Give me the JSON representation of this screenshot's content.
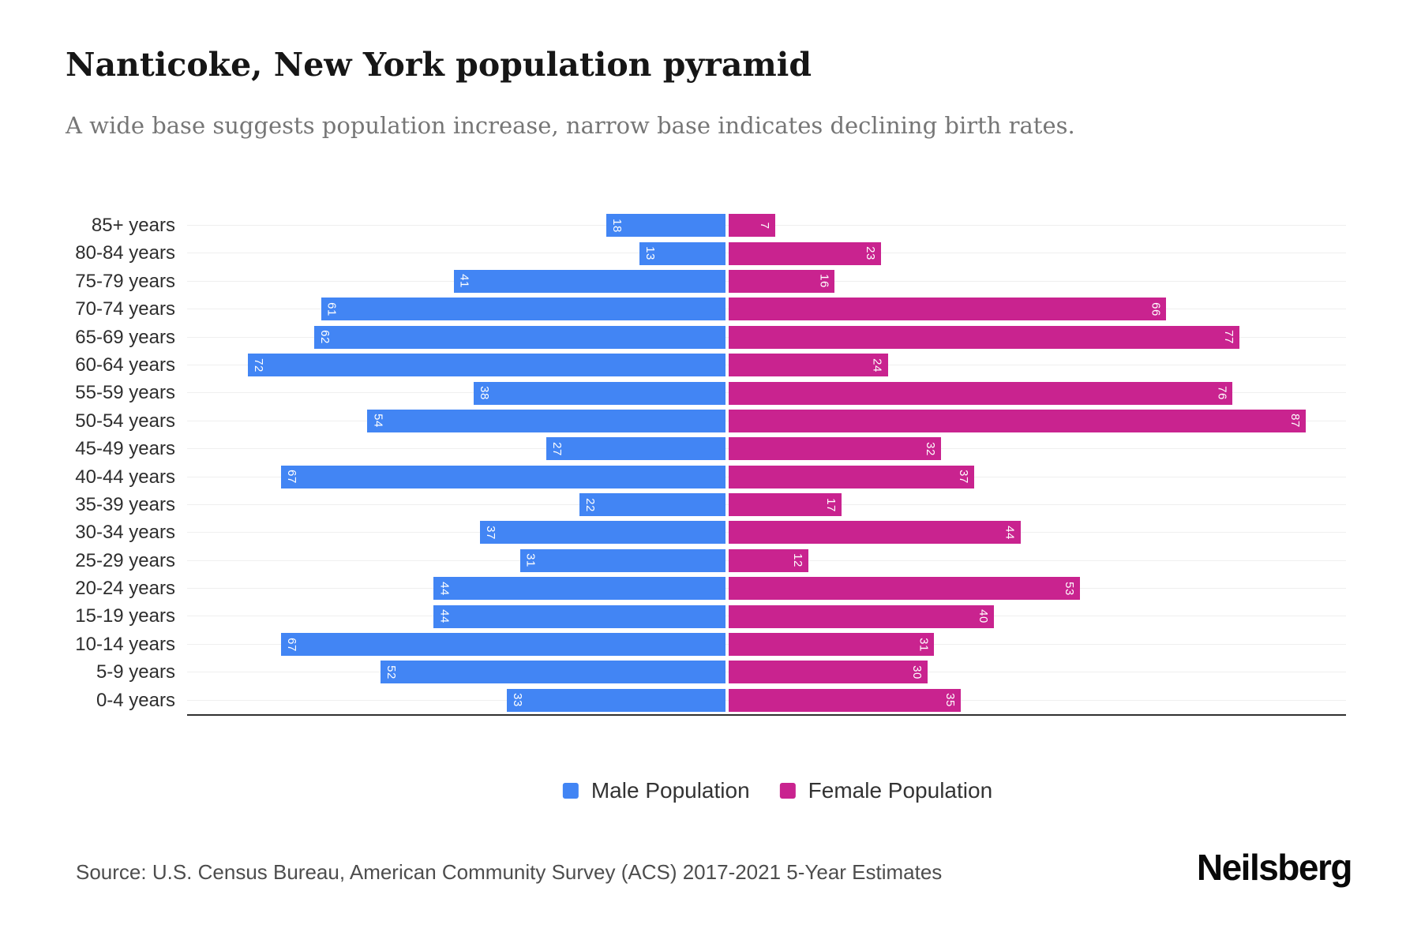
{
  "header": {
    "title": "Nanticoke, New York population pyramid",
    "subtitle": "A wide base suggests population increase, narrow base indicates declining birth rates."
  },
  "chart_data": {
    "type": "bar",
    "variant": "population-pyramid",
    "orientation": "horizontal",
    "categories": [
      "85+ years",
      "80-84 years",
      "75-79 years",
      "70-74 years",
      "65-69 years",
      "60-64 years",
      "55-59 years",
      "50-54 years",
      "45-49 years",
      "40-44 years",
      "35-39 years",
      "30-34 years",
      "25-29 years",
      "20-24 years",
      "15-19 years",
      "10-14 years",
      "5-9 years",
      "0-4 years"
    ],
    "series": [
      {
        "name": "Male Population",
        "side": "left",
        "color": "#4285F4",
        "values": [
          18,
          13,
          41,
          61,
          62,
          72,
          38,
          54,
          27,
          67,
          22,
          37,
          31,
          44,
          44,
          67,
          52,
          33
        ]
      },
      {
        "name": "Female Population",
        "side": "right",
        "color": "#C9238F",
        "values": [
          7,
          23,
          16,
          66,
          77,
          24,
          76,
          87,
          32,
          37,
          17,
          44,
          12,
          53,
          40,
          31,
          30,
          35
        ]
      }
    ],
    "value_labels": "inside-bar-ends, rotated 90deg, white",
    "x_axis_ticks_visible": false,
    "grid": "horizontal row gridlines",
    "legend_position": "bottom-center"
  },
  "legend": {
    "items": [
      {
        "label": "Male Population",
        "color": "#4285F4"
      },
      {
        "label": "Female Population",
        "color": "#C9238F"
      }
    ]
  },
  "footer": {
    "source": "Source: U.S. Census Bureau, American Community Survey (ACS) 2017-2021 5-Year Estimates",
    "brand": "Neilsberg"
  }
}
